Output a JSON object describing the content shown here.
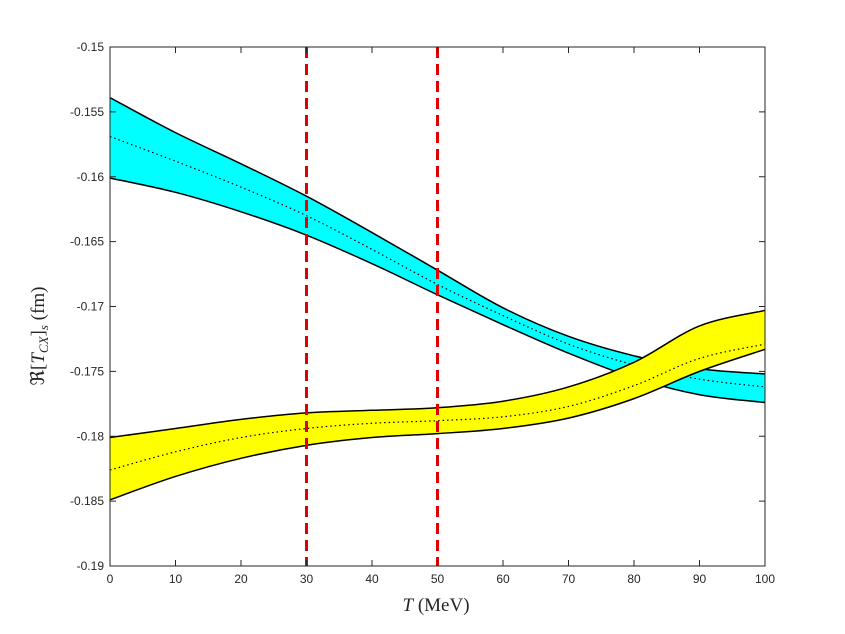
{
  "chart_data": {
    "type": "area",
    "title": "",
    "xlabel": "T (MeV)",
    "ylabel": "ℜ[T_CX]_s (fm)",
    "xlim": [
      0,
      100
    ],
    "ylim": [
      -0.19,
      -0.15
    ],
    "x_ticks": [
      0,
      10,
      20,
      30,
      40,
      50,
      60,
      70,
      80,
      90,
      100
    ],
    "x_tick_labels": [
      "0",
      "10",
      "20",
      "30",
      "40",
      "50",
      "60",
      "70",
      "80",
      "90",
      "100"
    ],
    "y_ticks": [
      -0.19,
      -0.185,
      -0.18,
      -0.175,
      -0.17,
      -0.165,
      -0.16,
      -0.155,
      -0.15
    ],
    "y_tick_labels": [
      "-0.19",
      "-0.185",
      "-0.18",
      "-0.175",
      "-0.17",
      "-0.165",
      "-0.16",
      "-0.155",
      "-0.15"
    ],
    "grid": false,
    "x": [
      0,
      10,
      20,
      30,
      40,
      50,
      60,
      70,
      80,
      90,
      100
    ],
    "bands": [
      {
        "fill_color": "#00ffff",
        "upper": [
          -0.1539,
          -0.1566,
          -0.159,
          -0.1615,
          -0.1643,
          -0.1672,
          -0.1701,
          -0.1723,
          -0.1738,
          -0.1748,
          -0.1752
        ],
        "lower": [
          -0.1601,
          -0.1612,
          -0.1627,
          -0.1645,
          -0.1667,
          -0.1691,
          -0.1714,
          -0.1736,
          -0.1755,
          -0.1768,
          -0.1774
        ],
        "central": [
          -0.1569,
          -0.1588,
          -0.1608,
          -0.163,
          -0.1656,
          -0.1683,
          -0.1707,
          -0.1729,
          -0.1745,
          -0.1756,
          -0.1762
        ]
      },
      {
        "fill_color": "#ffff00",
        "upper": [
          -0.1801,
          -0.1794,
          -0.1787,
          -0.1782,
          -0.178,
          -0.1778,
          -0.1773,
          -0.1762,
          -0.1743,
          -0.1715,
          -0.1703
        ],
        "lower": [
          -0.1849,
          -0.1831,
          -0.1817,
          -0.1807,
          -0.1801,
          -0.1798,
          -0.1794,
          -0.1786,
          -0.1771,
          -0.175,
          -0.1733
        ],
        "central": [
          -0.1826,
          -0.1812,
          -0.1801,
          -0.1794,
          -0.179,
          -0.1788,
          -0.1785,
          -0.1777,
          -0.1761,
          -0.174,
          -0.1729
        ]
      }
    ],
    "vertical_lines": [
      {
        "x": 30,
        "color": "#e00000",
        "style": "dashed"
      },
      {
        "x": 50,
        "color": "#e00000",
        "style": "dashed"
      }
    ]
  }
}
